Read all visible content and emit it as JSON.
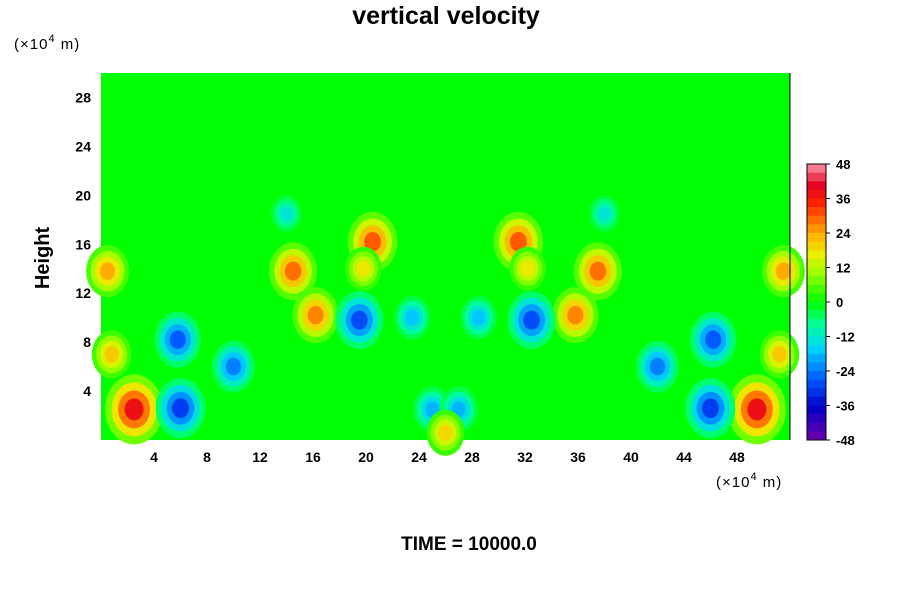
{
  "chart_data": {
    "type": "heatmap",
    "title": "vertical velocity",
    "ylabel": "Height",
    "x_unit_prefix": "(×10",
    "x_unit_exp": "4",
    "x_unit_suffix": " m)",
    "y_unit_prefix": "(×10",
    "y_unit_exp": "4",
    "y_unit_suffix": " m)",
    "xlim": [
      0,
      52
    ],
    "ylim": [
      0,
      30
    ],
    "x_ticks": [
      "4",
      "8",
      "12",
      "16",
      "20",
      "24",
      "28",
      "32",
      "36",
      "40",
      "44",
      "48"
    ],
    "x_tick_values": [
      4,
      8,
      12,
      16,
      20,
      24,
      28,
      32,
      36,
      40,
      44,
      48
    ],
    "y_ticks": [
      "4",
      "8",
      "12",
      "16",
      "20",
      "24",
      "28"
    ],
    "y_tick_values": [
      4,
      8,
      12,
      16,
      20,
      24,
      28
    ],
    "colorbar": {
      "min": -48,
      "max": 48,
      "levels": 32,
      "tick_labels": [
        "48",
        "36",
        "24",
        "12",
        "0",
        "-12",
        "-24",
        "-36",
        "-48"
      ],
      "tick_values": [
        48,
        36,
        24,
        12,
        0,
        -12,
        -24,
        -36,
        -48
      ]
    },
    "background_value": 0,
    "features": [
      {
        "x": 2.5,
        "y": 2.5,
        "value": 48
      },
      {
        "x": 49.5,
        "y": 2.5,
        "value": 48
      },
      {
        "x": 6.0,
        "y": 2.6,
        "value": -38
      },
      {
        "x": 46.0,
        "y": 2.6,
        "value": -38
      },
      {
        "x": 5.8,
        "y": 8.2,
        "value": -34
      },
      {
        "x": 46.2,
        "y": 8.2,
        "value": -34
      },
      {
        "x": 10.0,
        "y": 6.0,
        "value": -30
      },
      {
        "x": 42.0,
        "y": 6.0,
        "value": -30
      },
      {
        "x": 14.5,
        "y": 13.8,
        "value": 36
      },
      {
        "x": 37.5,
        "y": 13.8,
        "value": 36
      },
      {
        "x": 20.5,
        "y": 16.2,
        "value": 38
      },
      {
        "x": 31.5,
        "y": 16.2,
        "value": 38
      },
      {
        "x": 19.8,
        "y": 14.0,
        "value": 22
      },
      {
        "x": 32.2,
        "y": 14.0,
        "value": 22
      },
      {
        "x": 16.2,
        "y": 10.2,
        "value": 34
      },
      {
        "x": 35.8,
        "y": 10.2,
        "value": 34
      },
      {
        "x": 19.5,
        "y": 9.8,
        "value": -36
      },
      {
        "x": 32.5,
        "y": 9.8,
        "value": -36
      },
      {
        "x": 25.0,
        "y": 2.5,
        "value": -24
      },
      {
        "x": 27.0,
        "y": 2.5,
        "value": -24
      },
      {
        "x": 26.0,
        "y": 0.6,
        "value": 24
      },
      {
        "x": 0.5,
        "y": 13.8,
        "value": 30
      },
      {
        "x": 51.5,
        "y": 13.8,
        "value": 30
      },
      {
        "x": 0.8,
        "y": 7.0,
        "value": 26
      },
      {
        "x": 51.2,
        "y": 7.0,
        "value": 26
      },
      {
        "x": 14.0,
        "y": 18.5,
        "value": -16
      },
      {
        "x": 38.0,
        "y": 18.5,
        "value": -16
      },
      {
        "x": 23.5,
        "y": 10.0,
        "value": -22
      },
      {
        "x": 28.5,
        "y": 10.0,
        "value": -22
      }
    ]
  },
  "footer": {
    "time_label": "TIME = 10000.0"
  }
}
